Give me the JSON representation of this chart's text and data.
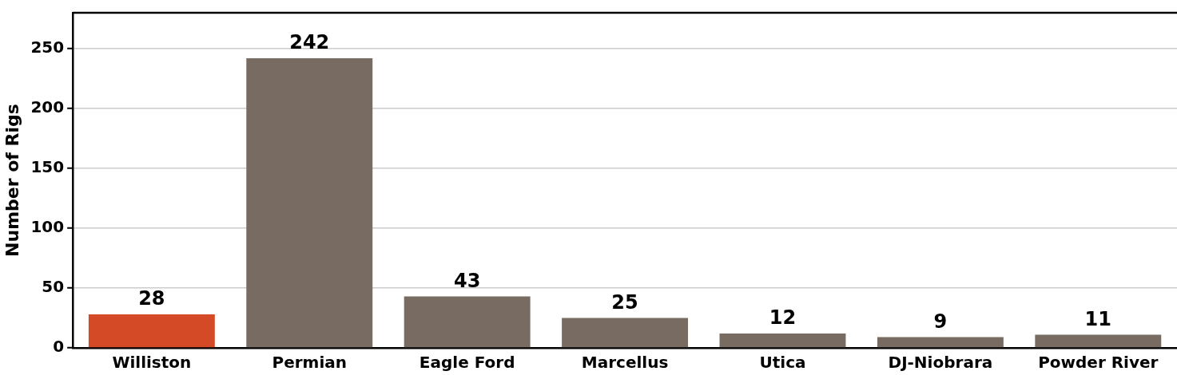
{
  "chart_data": {
    "type": "bar",
    "ylabel": "Number of Rigs",
    "categories": [
      "Williston",
      "Permian",
      "Eagle Ford",
      "Marcellus",
      "Utica",
      "DJ-Niobrara",
      "Powder River"
    ],
    "values": [
      28,
      242,
      43,
      25,
      12,
      9,
      11
    ],
    "colors": [
      "#d44a27",
      "#786c62",
      "#786c62",
      "#786c62",
      "#786c62",
      "#786c62",
      "#786c62"
    ],
    "ylim": [
      0,
      280
    ],
    "yticks": [
      0,
      50,
      100,
      150,
      200,
      250
    ],
    "grid": "y",
    "data_labels": true,
    "legend": false
  }
}
